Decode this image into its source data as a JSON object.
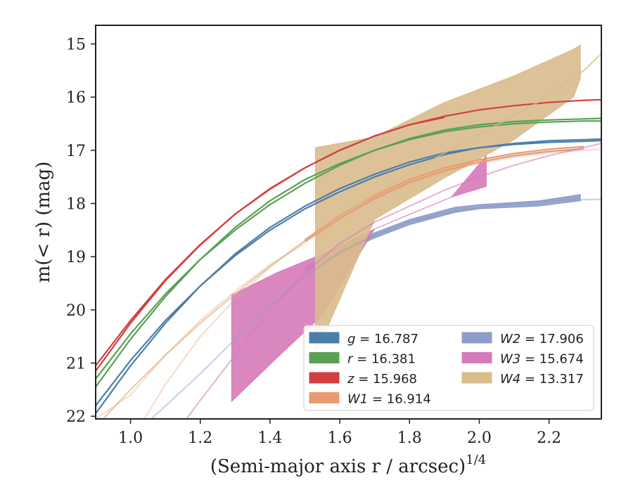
{
  "chart_data": {
    "type": "line",
    "xlabel": "(Semi-major axis r / arcsec)",
    "xlabel_exponent": "1/4",
    "ylabel": "m(< r) (mag)",
    "xlim": [
      0.9,
      2.35
    ],
    "ylim": [
      22.05,
      14.65
    ],
    "y_inverted": true,
    "xticks": [
      "1.0",
      "1.2",
      "1.4",
      "1.6",
      "1.8",
      "2.0",
      "2.2"
    ],
    "yticks": [
      "15",
      "16",
      "17",
      "18",
      "19",
      "20",
      "21",
      "22"
    ],
    "grid": false,
    "legend": {
      "placement": "lower-right",
      "columns": 2
    },
    "series": [
      {
        "name": "g = 16.787",
        "label_var": "g",
        "label_val": "= 16.787",
        "color": "#4c7eab",
        "curves": [
          {
            "alpha": 1.0,
            "x": [
              0.9,
              1.0,
              1.1,
              1.2,
              1.3,
              1.4,
              1.5,
              1.6,
              1.7,
              1.8,
              1.9,
              2.0,
              2.1,
              2.2,
              2.3,
              2.35
            ],
            "y": [
              21.95,
              21.05,
              20.25,
              19.55,
              18.95,
              18.45,
              18.05,
              17.72,
              17.45,
              17.22,
              17.05,
              16.95,
              16.89,
              16.85,
              16.83,
              16.82
            ]
          },
          {
            "alpha": 1.0,
            "x": [
              0.9,
              1.0,
              1.1,
              1.2,
              1.3,
              1.4,
              1.5,
              1.6,
              1.7,
              1.8,
              1.9,
              2.0,
              2.1,
              2.2,
              2.3,
              2.35
            ],
            "y": [
              21.8,
              20.95,
              20.2,
              19.55,
              18.98,
              18.5,
              18.1,
              17.78,
              17.5,
              17.27,
              17.08,
              16.95,
              16.87,
              16.82,
              16.8,
              16.79
            ]
          }
        ]
      },
      {
        "name": "r = 16.381",
        "label_var": "r",
        "label_val": "= 16.381",
        "color": "#5aa055",
        "curves": [
          {
            "alpha": 1.0,
            "x": [
              0.9,
              1.0,
              1.1,
              1.2,
              1.3,
              1.4,
              1.5,
              1.6,
              1.7,
              1.8,
              1.9,
              2.0,
              2.1,
              2.2,
              2.3,
              2.35
            ],
            "y": [
              21.45,
              20.55,
              19.75,
              19.05,
              18.45,
              17.95,
              17.55,
              17.25,
              17.0,
              16.8,
              16.65,
              16.56,
              16.5,
              16.47,
              16.45,
              16.45
            ]
          },
          {
            "alpha": 1.0,
            "x": [
              0.9,
              1.0,
              1.1,
              1.2,
              1.3,
              1.4,
              1.5,
              1.6,
              1.7,
              1.8,
              1.9,
              2.0,
              2.1,
              2.2,
              2.3,
              2.35
            ],
            "y": [
              21.3,
              20.45,
              19.7,
              19.05,
              18.5,
              18.02,
              17.62,
              17.28,
              17.0,
              16.78,
              16.62,
              16.52,
              16.46,
              16.43,
              16.41,
              16.4
            ]
          }
        ]
      },
      {
        "name": "z = 15.968",
        "label_var": "z",
        "label_val": "= 15.968",
        "color": "#d13f3f",
        "curves": [
          {
            "alpha": 1.0,
            "x": [
              0.9,
              1.0,
              1.1,
              1.2,
              1.3,
              1.4,
              1.5,
              1.6,
              1.7,
              1.8,
              1.9,
              2.0,
              2.1,
              2.2,
              2.3,
              2.35
            ],
            "y": [
              21.15,
              20.25,
              19.45,
              18.78,
              18.2,
              17.72,
              17.33,
              17.0,
              16.73,
              16.52,
              16.36,
              16.24,
              16.16,
              16.1,
              16.06,
              16.05
            ]
          },
          {
            "alpha": 1.0,
            "x": [
              0.9,
              1.0,
              1.1,
              1.2,
              1.3,
              1.4,
              1.5,
              1.6,
              1.7,
              1.8,
              1.9
            ],
            "y": [
              21.05,
              20.2,
              19.43,
              18.77,
              18.2,
              17.73,
              17.33,
              17.0,
              16.73,
              16.52,
              16.38
            ]
          }
        ]
      },
      {
        "name": "W1 = 16.914",
        "label_var": "W1",
        "label_val": "= 16.914",
        "color": "#e99a72",
        "curves": [
          {
            "alpha": 0.35,
            "x": [
              1.04,
              1.1,
              1.2,
              1.3,
              1.4,
              1.5,
              1.6,
              1.7,
              1.8,
              1.9,
              2.0,
              2.1,
              2.2,
              2.3,
              2.35
            ],
            "y": [
              22.05,
              21.4,
              20.5,
              19.8,
              19.2,
              18.7,
              18.28,
              17.92,
              17.62,
              17.4,
              17.25,
              17.13,
              17.05,
              17.0,
              16.98
            ]
          },
          {
            "alpha": 1.0,
            "x": [
              1.5,
              1.6,
              1.7,
              1.8,
              1.9,
              2.0,
              2.1,
              2.2,
              2.3
            ],
            "y": [
              18.68,
              18.23,
              17.85,
              17.55,
              17.33,
              17.18,
              17.06,
              16.98,
              16.93
            ]
          },
          {
            "alpha": 1.0,
            "x": [
              1.5,
              1.6,
              1.7,
              1.8,
              1.9,
              2.0,
              2.1,
              2.2,
              2.3
            ],
            "y": [
              18.72,
              18.28,
              17.9,
              17.6,
              17.38,
              17.22,
              17.1,
              17.02,
              16.97
            ]
          },
          {
            "alpha": 0.35,
            "x": [
              0.9,
              1.0,
              1.1,
              1.2,
              1.3,
              1.4,
              1.5
            ],
            "y": [
              22.05,
              21.6,
              20.85,
              20.2,
              19.65,
              19.15,
              18.75
            ]
          }
        ]
      },
      {
        "name": "W2 = 17.906",
        "label_var": "W2",
        "label_val": "= 17.906",
        "color": "#8d9cc8",
        "curves": [
          {
            "alpha": 0.45,
            "x": [
              1.06,
              1.2,
              1.3,
              1.4,
              1.5,
              1.6,
              1.7,
              1.8,
              1.9,
              2.0,
              2.1,
              2.2,
              2.3,
              2.35
            ],
            "y": [
              22.05,
              21.2,
              20.55,
              19.92,
              19.38,
              18.92,
              18.6,
              18.35,
              18.18,
              18.08,
              18.0,
              17.95,
              17.93,
              17.92
            ]
          }
        ],
        "band_x": [
          1.5,
          1.6,
          1.7,
          1.8,
          1.93,
          2.0,
          2.17,
          2.29
        ],
        "band_low": [
          19.2,
          18.85,
          18.55,
          18.3,
          18.07,
          18.02,
          17.95,
          17.83
        ],
        "band_high": [
          19.3,
          18.95,
          18.65,
          18.4,
          18.17,
          18.1,
          18.05,
          17.95
        ]
      },
      {
        "name": "W3 = 15.674",
        "label_var": "W3",
        "label_val": "= 15.674",
        "color": "#d67ab9",
        "curves": [
          {
            "alpha": 0.55,
            "x": [
              1.16,
              1.2,
              1.3,
              1.4,
              1.5,
              1.6,
              1.7,
              1.8,
              1.9,
              2.0,
              2.1,
              2.2,
              2.3,
              2.35
            ],
            "y": [
              22.05,
              21.7,
              20.85,
              20.0,
              19.3,
              18.75,
              18.35,
              18.05,
              17.75,
              17.5,
              17.28,
              17.1,
              16.95,
              16.87
            ]
          }
        ],
        "band_x": [
          1.29,
          1.42,
          1.55,
          1.7,
          1.82,
          1.92,
          2.02
        ],
        "band_low": [
          19.72,
          19.3,
          18.95,
          18.48,
          18.15,
          17.88,
          17.1
        ],
        "band_high": [
          21.72,
          20.9,
          20.1,
          18.48,
          18.15,
          17.88,
          17.68
        ]
      },
      {
        "name": "W4 = 13.317",
        "label_var": "W4",
        "label_val": "= 13.317",
        "color": "#d9bb8c",
        "curves": [
          {
            "alpha": 0.7,
            "x": [
              0.9,
              1.0,
              1.1,
              1.2,
              1.3,
              1.4,
              1.5,
              1.6,
              1.7,
              1.8,
              1.9,
              2.0,
              2.1,
              2.2,
              2.3,
              2.35
            ],
            "y": [
              22.2,
              21.5,
              20.85,
              20.25,
              19.7,
              19.18,
              18.7,
              18.25,
              17.82,
              17.42,
              17.05,
              16.7,
              16.35,
              15.98,
              15.5,
              15.18
            ]
          }
        ],
        "band_x": [
          1.53,
          1.7,
          1.9,
          2.1,
          2.27,
          2.29
        ],
        "band_low": [
          16.95,
          16.75,
          16.1,
          15.6,
          15.1,
          15.02
        ],
        "band_high": [
          20.85,
          18.3,
          17.52,
          16.8,
          16.0,
          15.65
        ]
      }
    ]
  }
}
